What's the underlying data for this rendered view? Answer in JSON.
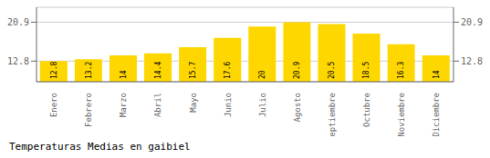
{
  "chart_data": {
    "type": "bar",
    "title": "Temperaturas Medias en gaibiel",
    "categories": [
      "Enero",
      "Febrero",
      "Marzo",
      "Abril",
      "Mayo",
      "Junio",
      "Julio",
      "Agosto",
      "Septiembre",
      "Octubre",
      "Noviembre",
      "Diciembre"
    ],
    "values": [
      12.8,
      13.2,
      14.0,
      14.4,
      15.7,
      17.6,
      20.0,
      20.9,
      20.5,
      18.5,
      16.3,
      14.0
    ],
    "color": "#FFD700",
    "ylim": [
      8.5,
      24.0
    ],
    "yticks": [
      12.8,
      20.9
    ],
    "y2lim": [
      8.5,
      24.0
    ],
    "y2ticks": [
      12.8,
      20.9
    ],
    "grid": true,
    "data_labels": true
  }
}
